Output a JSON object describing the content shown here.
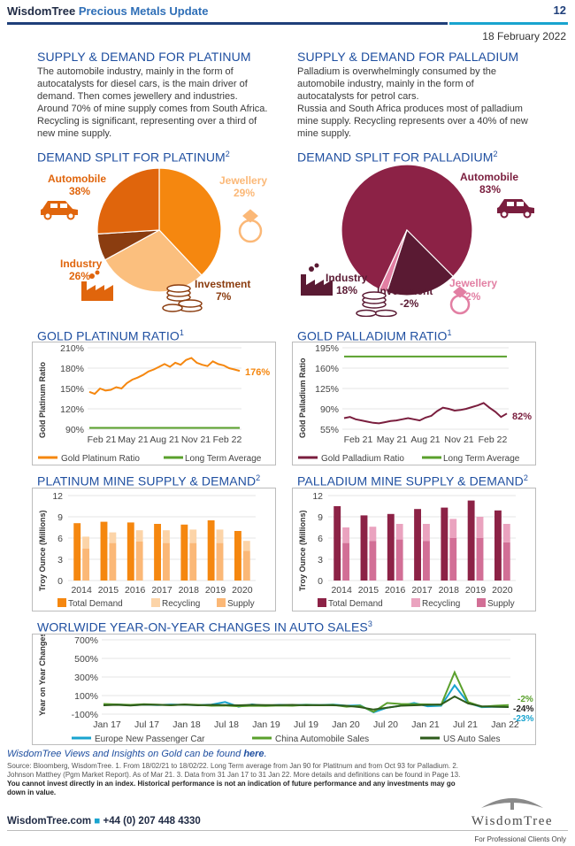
{
  "header": {
    "brand": "WisdomTree",
    "subtitle": "Precious Metals Update",
    "page_number": "12",
    "date": "18 February 2022"
  },
  "platinum_sd": {
    "title": "SUPPLY & DEMAND FOR PLATINUM",
    "lines": [
      "The automobile industry, mainly in the form of",
      "autocatalysts for diesel cars, is the main driver of",
      "demand. Then comes jewellery and industries.",
      "Around 70% of mine supply comes from South Africa.",
      "Recycling is significant, representing over a third of",
      "new mine supply."
    ]
  },
  "palladium_sd": {
    "title": "SUPPLY & DEMAND FOR PALLADIUM",
    "lines": [
      "Palladium is overwhelmingly consumed by the",
      "automobile industry, mainly in the form of",
      "autocatalysts for petrol cars.",
      "Russia and South Africa produces most of palladium",
      "mine supply. Recycling represents over a 40% of new",
      "mine supply."
    ]
  },
  "pie_platinum": {
    "title": "DEMAND SPLIT FOR PLATINUM",
    "sup": "2",
    "labels": {
      "automobile": "Automobile",
      "automobile_pct": "38%",
      "jewellery": "Jewellery",
      "jewellery_pct": "29%",
      "industry": "Industry",
      "industry_pct": "26%",
      "investment": "Investment",
      "investment_pct": "7%"
    },
    "chart_data": {
      "type": "pie",
      "categories": [
        "Automobile",
        "Jewellery",
        "Investment",
        "Industry"
      ],
      "values": [
        38,
        29,
        7,
        26
      ],
      "colors": [
        "#f5870f",
        "#fbbf7e",
        "#8b3d10",
        "#e0650c"
      ]
    }
  },
  "pie_palladium": {
    "title": "DEMAND SPLIT FOR PALLADIUM",
    "sup": "2",
    "labels": {
      "automobile": "Automobile",
      "automobile_pct": "83%",
      "industry": "Industry",
      "industry_pct": "18%",
      "investment": "Investment",
      "investment_pct": "-2%",
      "jewellery": "Jewellery",
      "jewellery_pct": "2%"
    },
    "chart_data": {
      "type": "pie",
      "categories": [
        "Automobile",
        "Industry",
        "Jewellery"
      ],
      "values": [
        83,
        18,
        2
      ],
      "colors": [
        "#8c2246",
        "#5a1a33",
        "#e27fa3"
      ]
    }
  },
  "gold_platinum": {
    "title": "GOLD PLATINUM RATIO",
    "sup": "1",
    "ylabel": "Gold Platinum  Ratio",
    "end_label": "176%",
    "legend": [
      "Gold Platinum Ratio",
      "Long Term Average"
    ],
    "chart_data": {
      "type": "line",
      "ylim": [
        90,
        210
      ],
      "yticks": [
        "210%",
        "180%",
        "150%",
        "120%",
        "90%"
      ],
      "xticks": [
        "Feb 21",
        "May 21",
        "Aug 21",
        "Nov 21",
        "Feb 22"
      ],
      "series": [
        {
          "name": "Gold Platinum Ratio",
          "color": "#f5870f",
          "values": [
            145,
            142,
            150,
            147,
            148,
            152,
            150,
            158,
            163,
            166,
            170,
            175,
            178,
            182,
            186,
            182,
            188,
            185,
            192,
            195,
            188,
            185,
            183,
            190,
            186,
            184,
            180,
            178,
            176
          ]
        },
        {
          "name": "Long Term Average",
          "color": "#5aa02c",
          "values": [
            92,
            92
          ]
        }
      ]
    }
  },
  "gold_palladium": {
    "title": "GOLD PALLADIUM RATIO",
    "sup": "1",
    "ylabel": "Gold Palladium  Ratio",
    "end_label": "82%",
    "legend": [
      "Gold Palladium Ratio",
      "Long Term Average"
    ],
    "chart_data": {
      "type": "line",
      "ylim": [
        55,
        195
      ],
      "yticks": [
        "195%",
        "160%",
        "125%",
        "90%",
        "55%"
      ],
      "xticks": [
        "Feb 21",
        "May 21",
        "Aug 21",
        "Nov 21",
        "Feb 22"
      ],
      "series": [
        {
          "name": "Gold Palladium Ratio",
          "color": "#7a1e3e",
          "values": [
            74,
            76,
            72,
            70,
            68,
            66,
            65,
            67,
            69,
            70,
            72,
            74,
            72,
            70,
            75,
            78,
            86,
            92,
            90,
            87,
            88,
            90,
            93,
            96,
            100,
            92,
            85,
            76,
            82
          ]
        },
        {
          "name": "Long Term Average",
          "color": "#5aa02c",
          "values": [
            180,
            180
          ]
        }
      ]
    }
  },
  "platinum_mine": {
    "title": "PLATINUM MINE SUPPLY & DEMAND",
    "sup": "2",
    "ylabel": "Troy Ounce (Millions)",
    "legend": [
      "Total Demand",
      "Recycling",
      "Supply"
    ],
    "chart_data": {
      "type": "bar",
      "categories": [
        "2014",
        "2015",
        "2016",
        "2017",
        "2018",
        "2019",
        "2020"
      ],
      "ylim": [
        0,
        12
      ],
      "yticks": [
        "12",
        "9",
        "6",
        "3",
        "0"
      ],
      "series": [
        {
          "name": "Total Demand",
          "color": "#f5870f",
          "values": [
            8.1,
            8.3,
            8.2,
            8.0,
            7.9,
            8.5,
            7.0
          ]
        },
        {
          "name": "Recycling",
          "color": "#fcd4a8",
          "values": [
            1.7,
            1.5,
            1.6,
            1.8,
            1.9,
            1.9,
            1.4
          ]
        },
        {
          "name": "Supply",
          "color": "#fbb877",
          "values": [
            4.5,
            5.3,
            5.5,
            5.3,
            5.3,
            5.3,
            4.2
          ]
        }
      ]
    }
  },
  "palladium_mine": {
    "title": "PALLADIUM MINE SUPPLY & DEMAND",
    "sup": "2",
    "ylabel": "Troy Ounce (Millions)",
    "legend": [
      "Total Demand",
      "Recycling",
      "Supply"
    ],
    "chart_data": {
      "type": "bar",
      "categories": [
        "2014",
        "2015",
        "2016",
        "2017",
        "2018",
        "2019",
        "2020"
      ],
      "ylim": [
        0,
        12
      ],
      "yticks": [
        "12",
        "9",
        "6",
        "3",
        "0"
      ],
      "series": [
        {
          "name": "Total Demand",
          "color": "#8c2246",
          "values": [
            10.5,
            9.2,
            9.4,
            10.1,
            10.3,
            11.3,
            9.9
          ]
        },
        {
          "name": "Recycling",
          "color": "#eaa3bf",
          "values": [
            2.2,
            2.0,
            2.2,
            2.4,
            2.7,
            3.0,
            2.6
          ]
        },
        {
          "name": "Supply",
          "color": "#d26f96",
          "values": [
            5.3,
            5.6,
            5.8,
            5.6,
            6.0,
            6.0,
            5.4
          ]
        }
      ]
    }
  },
  "auto_sales": {
    "title": "WORLWIDE YEAR-ON-YEAR CHANGES IN AUTO SALES",
    "sup": "3",
    "ylabel": "Year on Year Changes",
    "legend": [
      "Europe New Passenger Car",
      "China Automobile Sales",
      "US Auto Sales"
    ],
    "end_labels": [
      "-2%",
      "-24%",
      "-23%"
    ],
    "chart_data": {
      "type": "line",
      "ylim": [
        -100,
        700
      ],
      "yticks": [
        "700%",
        "500%",
        "300%",
        "100%",
        "-100%"
      ],
      "xticks": [
        "Jan 17",
        "Jul 17",
        "Jan 18",
        "Jul 18",
        "Jan 19",
        "Jul 19",
        "Jan 20",
        "Jul 20",
        "Jan 21",
        "Jul 21",
        "Jan 22"
      ],
      "series": [
        {
          "name": "Europe New Passenger Car",
          "color": "#19a4cf",
          "values": [
            0,
            5,
            -5,
            2,
            -3,
            4,
            0,
            -2,
            3,
            30,
            -20,
            5,
            -10,
            0,
            -5,
            3,
            -2,
            4,
            -10,
            -5,
            -80,
            -30,
            -10,
            20,
            -15,
            -10,
            210,
            20,
            -25,
            -20,
            -23
          ]
        },
        {
          "name": "China Automobile Sales",
          "color": "#5aa02c",
          "values": [
            10,
            5,
            0,
            8,
            3,
            -5,
            5,
            0,
            -10,
            -8,
            -15,
            -10,
            -12,
            -8,
            -10,
            0,
            -5,
            0,
            -20,
            -10,
            -75,
            20,
            10,
            8,
            5,
            0,
            350,
            30,
            -20,
            -10,
            -2
          ]
        },
        {
          "name": "US Auto Sales",
          "color": "#2e5b1b",
          "values": [
            -5,
            0,
            -8,
            2,
            0,
            -3,
            2,
            -5,
            0,
            -3,
            -5,
            0,
            -2,
            -3,
            0,
            -5,
            -3,
            -5,
            -10,
            -25,
            -50,
            -30,
            -10,
            -5,
            0,
            5,
            90,
            15,
            -15,
            -20,
            -24
          ]
        }
      ]
    }
  },
  "footer": {
    "views_prefix": "WisdomTree Views and Insights on Gold can be found ",
    "views_link": "here",
    "views_suffix": ".",
    "source_lines": [
      "Source: Bloomberg, WisdomTree. 1. From 18/02/21 to 18/02/22. Long Term average from Jan 90 for Platitnum and from Oct 93 for Palladium. 2.",
      "Johnson Matthey (Pgm Market Report). As of Mar 21. 3. Data from 31 Jan 17 to 31 Jan 22. More details and definitions can be found in Page 13."
    ],
    "disclaimer_lines": [
      "You cannot invest directly in an index. Historical performance is not an indication of future performance and any investments may go",
      "down in value."
    ],
    "website": "WisdomTree.com",
    "phone": "+44 (0) 207 448 4330",
    "logo": "WisdomTree",
    "professional": "For Professional Clients Only"
  }
}
